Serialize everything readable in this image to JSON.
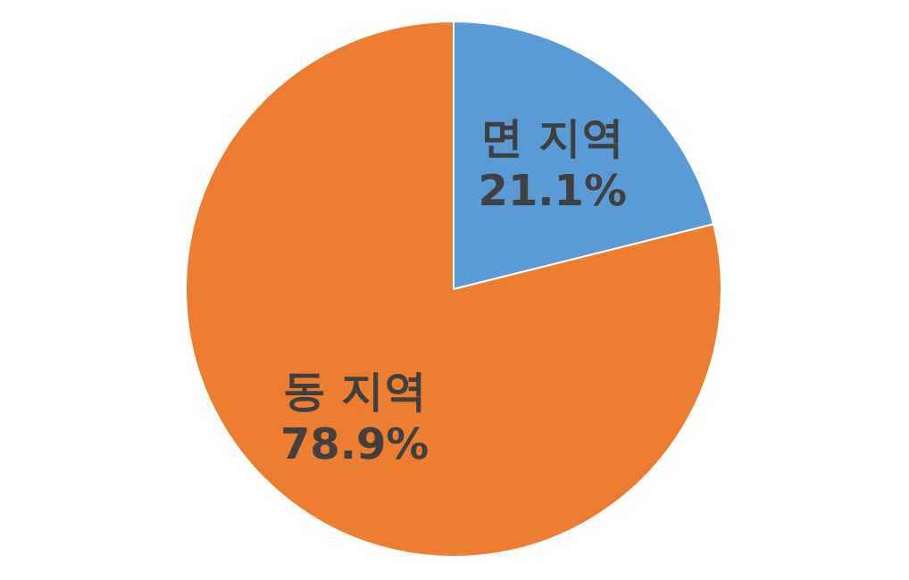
{
  "chart_data": {
    "type": "pie",
    "categories": [
      "면 지역",
      "동 지역"
    ],
    "values": [
      21.1,
      78.9
    ],
    "colors": [
      "#5b9bd5",
      "#ed7d31"
    ],
    "value_labels": [
      "21.1%",
      "78.9%"
    ]
  }
}
